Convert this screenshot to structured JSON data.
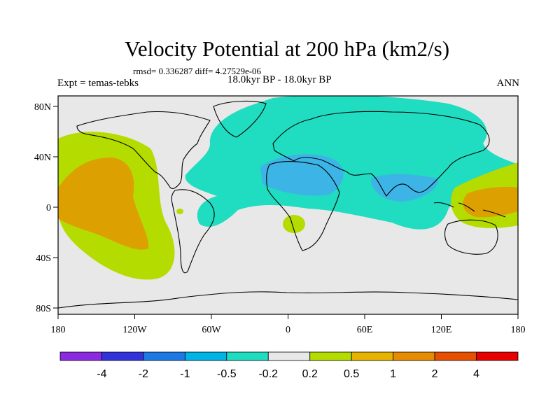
{
  "header": {
    "title": "Velocity Potential at 200 hPa (km2/s)",
    "stats": "rmsd= 0.336287 diff= 4.27529e-06",
    "period": "18.0kyr BP - 18.0kyr BP",
    "experiment": "Expt = temas-tebks",
    "season": "ANN"
  },
  "axes": {
    "y_ticks": [
      {
        "label": "80N",
        "lat": 80
      },
      {
        "label": "40N",
        "lat": 40
      },
      {
        "label": "0",
        "lat": 0
      },
      {
        "label": "40S",
        "lat": -40
      },
      {
        "label": "80S",
        "lat": -80
      }
    ],
    "x_ticks": [
      {
        "label": "180",
        "lon": -180
      },
      {
        "label": "120W",
        "lon": -120
      },
      {
        "label": "60W",
        "lon": -60
      },
      {
        "label": "0",
        "lon": 0
      },
      {
        "label": "60E",
        "lon": 60
      },
      {
        "label": "120E",
        "lon": 120
      },
      {
        "label": "180",
        "lon": 180
      }
    ]
  },
  "colorbar": {
    "colors": [
      "#8a2be2",
      "#3232dc",
      "#1e78e6",
      "#00b4e6",
      "#20dcc0",
      "#e8e8e8",
      "#b4dc00",
      "#e6b400",
      "#e68c00",
      "#e65000",
      "#e60000"
    ],
    "labels": [
      "-4",
      "-2",
      "-1",
      "-0.5",
      "-0.2",
      "0.2",
      "0.5",
      "1",
      "2",
      "4"
    ]
  },
  "map": {
    "background_color": "#e8e8e8",
    "colors": {
      "teal": "#20dcc0",
      "cyan": "#3cb4e6",
      "lime": "#b4dc00",
      "orange": "#dca000"
    }
  }
}
